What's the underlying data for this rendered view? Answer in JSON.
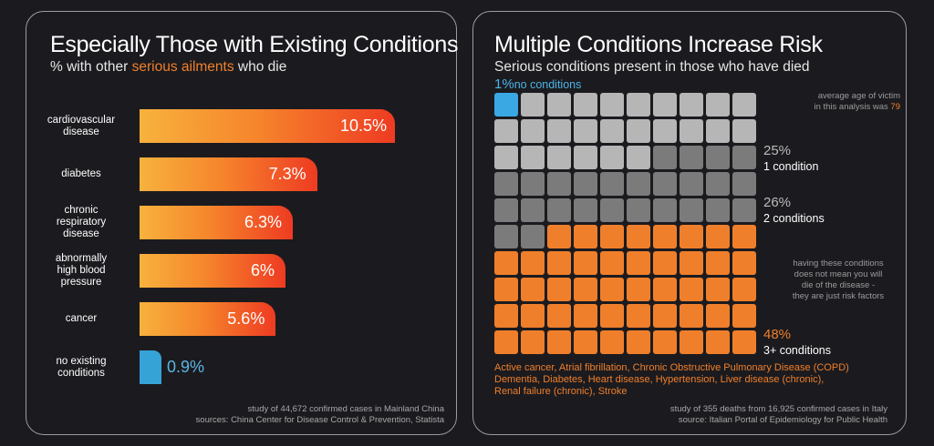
{
  "left": {
    "title": "Especially Those with Existing Conditions",
    "subtitle_pre": "% with other ",
    "subtitle_accent": "serious ailments",
    "subtitle_post": " who die",
    "source_line1": "study of 44,672 confirmed cases in Mainland China",
    "source_line2": "sources: China Center for Disease Control & Prevention, Statista"
  },
  "right": {
    "title": "Multiple Conditions Increase Risk",
    "subtitle": "Serious conditions present in those who have died",
    "no_cond_pct": "1%",
    "no_cond_label": "no conditions",
    "age_note_line1": "average age of victim",
    "age_note_line2": "in this analysis was ",
    "age_value": "79",
    "one_pct": "25%",
    "one_label": "1 condition",
    "two_pct": "26%",
    "two_label": "2 conditions",
    "three_pct": "48%",
    "three_label": "3+ conditions",
    "risk_note": [
      "having these conditions",
      "does not mean you will",
      "die of the disease -",
      "they are just risk factors"
    ],
    "conditions_list": [
      "Active cancer, Atrial fibrillation, Chronic Obstructive Pulmonary Disease (COPD)",
      "Dementia, Diabetes, Heart disease, Hypertension, Liver disease (chronic),",
      "Renal failure (chronic), Stroke"
    ],
    "source_line1": "study of 355 deaths from 16,925 confirmed cases in Italy",
    "source_line2": "source: Italian Portal of Epidemiology for Public Health"
  },
  "chart_data": [
    {
      "type": "bar",
      "orientation": "horizontal",
      "title": "Especially Those with Existing Conditions",
      "subtitle": "% with other serious ailments who die",
      "categories": [
        "cardiovascular disease",
        "diabetes",
        "chronic respiratory disease",
        "abnormally high blood pressure",
        "cancer",
        "no existing conditions"
      ],
      "category_lines": [
        [
          "cardiovascular",
          "disease"
        ],
        [
          "diabetes"
        ],
        [
          "chronic",
          "respiratory",
          "disease"
        ],
        [
          "abnormally",
          "high blood",
          "pressure"
        ],
        [
          "cancer"
        ],
        [
          "no existing",
          "conditions"
        ]
      ],
      "values": [
        10.5,
        7.3,
        6.3,
        6,
        5.6,
        0.9
      ],
      "value_labels": [
        "10.5%",
        "7.3%",
        "6.3%",
        "6%",
        "5.6%",
        "0.9%"
      ],
      "colors": {
        "gradient_start": "#f7b23d",
        "gradient_end": "#ee3b22",
        "highlight": "#35a3d6"
      }
    },
    {
      "type": "waffle",
      "title": "Multiple Conditions Increase Risk",
      "grid": {
        "rows": 10,
        "cols": 10
      },
      "series": [
        {
          "name": "no conditions",
          "value": 1,
          "color": "#3aa8e3"
        },
        {
          "name": "1 condition",
          "value": 25,
          "color": "#b6b6b6"
        },
        {
          "name": "2 conditions",
          "value": 26,
          "color": "#7b7b7b"
        },
        {
          "name": "3+ conditions",
          "value": 48,
          "color": "#f07f2b"
        }
      ]
    }
  ]
}
